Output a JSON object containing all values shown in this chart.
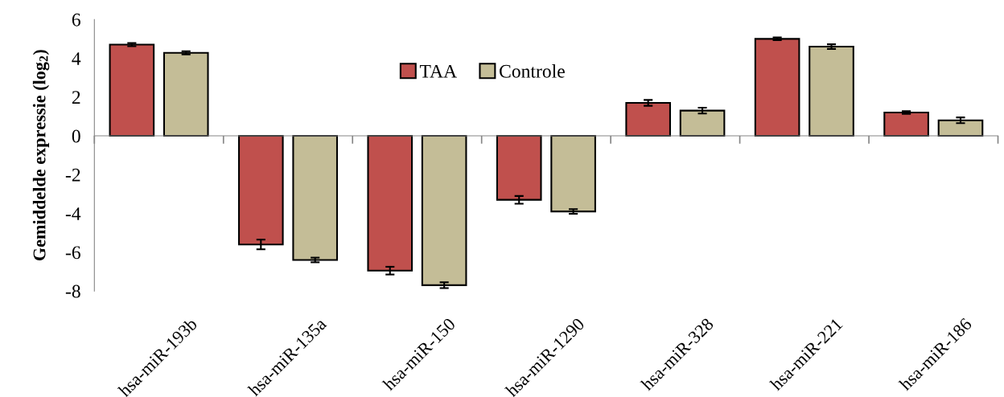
{
  "chart_data": {
    "type": "bar",
    "ylabel": "Gemiddelde expressie (log$_{2}$)",
    "categories": [
      "hsa-miR-193b",
      "hsa-miR-135a",
      "hsa-miR-150",
      "hsa-miR-1290",
      "hsa-miR-328",
      "hsa-miR-221",
      "hsa-miR-186"
    ],
    "series": [
      {
        "name": "TAA",
        "color": "#c0504d",
        "values": [
          4.7,
          -5.6,
          -6.95,
          -3.3,
          1.7,
          5.0,
          1.2
        ],
        "errors": [
          0.08,
          0.25,
          0.2,
          0.2,
          0.15,
          0.07,
          0.07
        ]
      },
      {
        "name": "Controle",
        "color": "#c4bd97",
        "values": [
          4.28,
          -6.4,
          -7.7,
          -3.9,
          1.3,
          4.6,
          0.8
        ],
        "errors": [
          0.08,
          0.12,
          0.15,
          0.12,
          0.15,
          0.12,
          0.15
        ]
      }
    ],
    "ylim": [
      -8,
      6
    ],
    "yticks": [
      -8,
      -6,
      -4,
      -2,
      0,
      2,
      4,
      6
    ],
    "legend": "top"
  }
}
